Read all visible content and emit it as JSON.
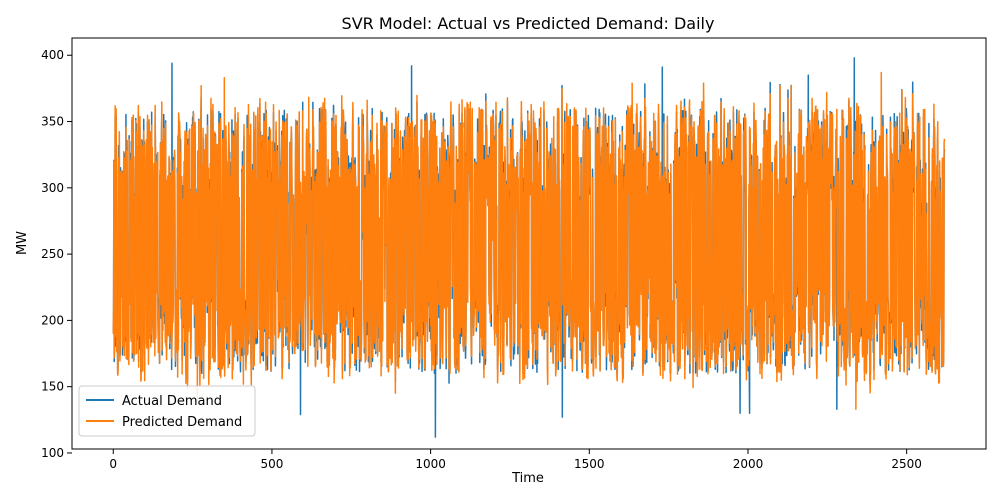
{
  "chart_data": {
    "type": "line",
    "title": "SVR Model: Actual vs Predicted Demand: Daily",
    "xlabel": "Time",
    "ylabel": "MW",
    "xlim": [
      -130,
      2750
    ],
    "ylim": [
      103,
      413
    ],
    "xticks": [
      0,
      500,
      1000,
      1500,
      2000,
      2500
    ],
    "yticks": [
      100,
      150,
      200,
      250,
      300,
      350,
      400
    ],
    "x_count": 2620,
    "grid": false,
    "legend_position": "lower-left",
    "series": [
      {
        "name": "Actual Demand",
        "color": "#1f77b4",
        "min": 112,
        "max": 398,
        "extremes": [
          {
            "x": 1015,
            "y": 112
          },
          {
            "x": 1415,
            "y": 127
          },
          {
            "x": 590,
            "y": 129
          },
          {
            "x": 1975,
            "y": 130
          },
          {
            "x": 2005,
            "y": 130
          },
          {
            "x": 2280,
            "y": 133
          },
          {
            "x": 185,
            "y": 394
          },
          {
            "x": 940,
            "y": 392
          },
          {
            "x": 1730,
            "y": 391
          },
          {
            "x": 2335,
            "y": 398
          },
          {
            "x": 2190,
            "y": 385
          }
        ]
      },
      {
        "name": "Predicted Demand",
        "color": "#ff7f0e",
        "min": 133,
        "max": 387,
        "extremes": [
          {
            "x": 2340,
            "y": 133
          },
          {
            "x": 265,
            "y": 139
          },
          {
            "x": 2420,
            "y": 387
          },
          {
            "x": 350,
            "y": 383
          },
          {
            "x": 1635,
            "y": 379
          },
          {
            "x": 1860,
            "y": 379
          }
        ]
      }
    ]
  }
}
